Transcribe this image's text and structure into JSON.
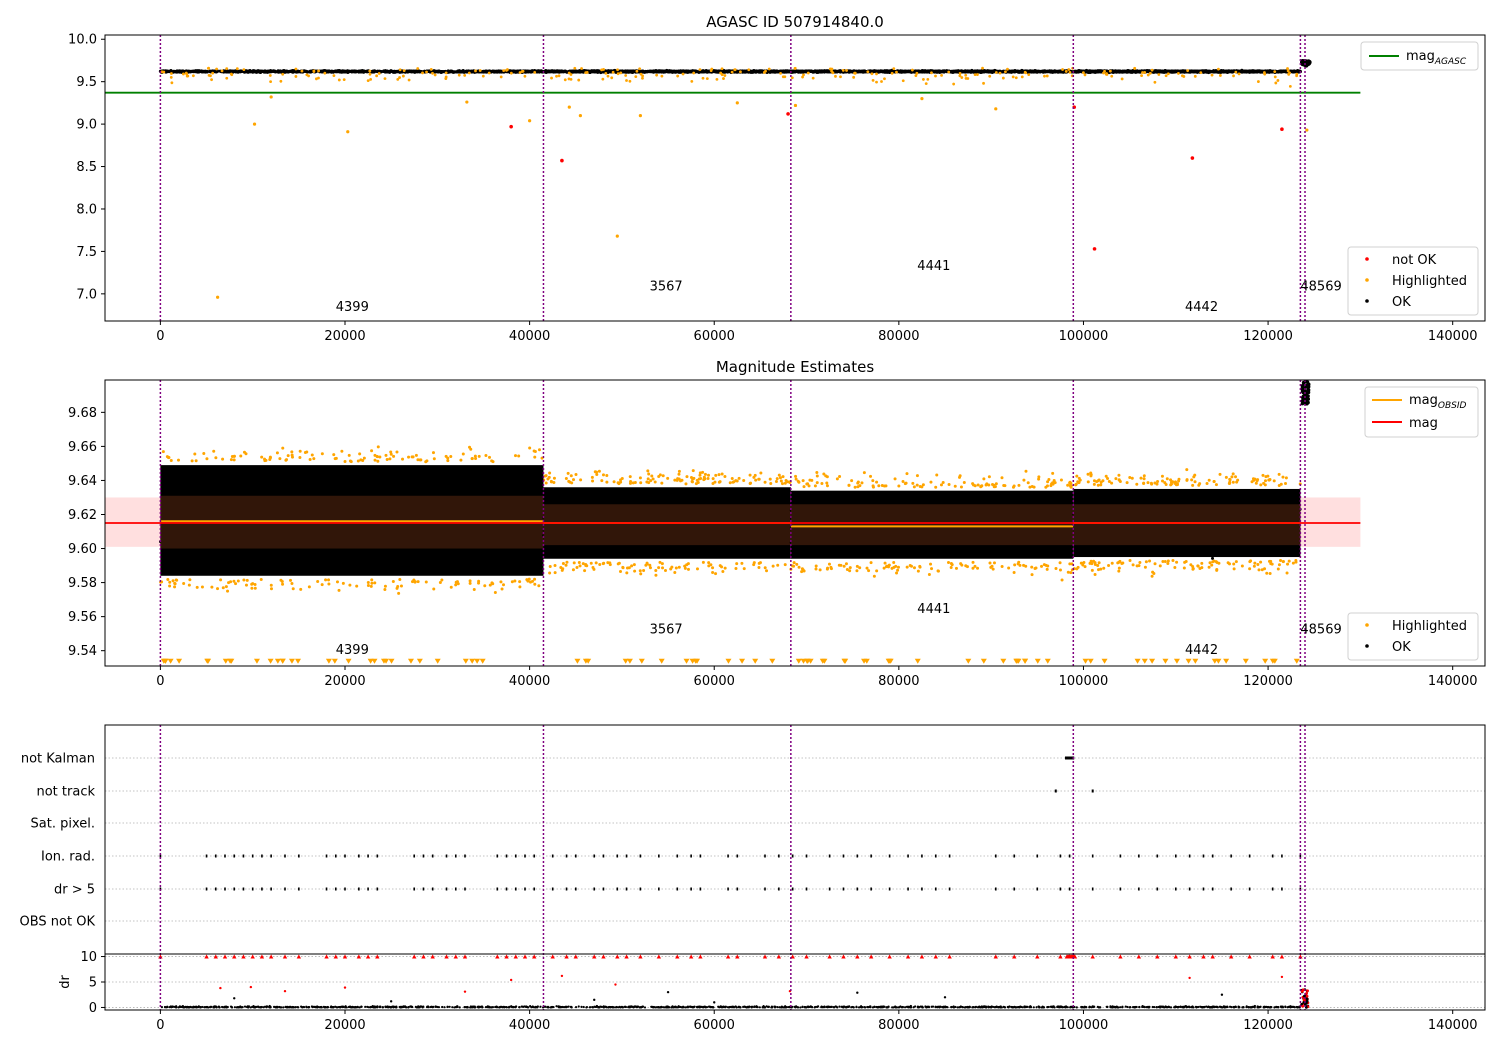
{
  "chart_data": [
    {
      "type": "scatter",
      "title": "AGASC ID 507914840.0",
      "xlim": [
        -6000,
        143500
      ],
      "ylim": [
        6.68,
        10.05
      ],
      "xticks": [
        0,
        20000,
        40000,
        60000,
        80000,
        100000,
        120000,
        140000
      ],
      "yticks": [
        7.0,
        7.5,
        8.0,
        8.5,
        9.0,
        9.5,
        10.0
      ],
      "ytick_labels": [
        "7.0",
        "7.5",
        "8.0",
        "8.5",
        "9.0",
        "9.5",
        "10.0"
      ],
      "mag_agasc": 9.37,
      "mag_agasc_x_range": [
        -6000,
        130000
      ],
      "baseline_mag": 9.62,
      "obsid_boundaries": [
        0,
        41500,
        68300,
        98900,
        123500,
        124000
      ],
      "obsid_labels": [
        {
          "text": "4399",
          "x": 19000,
          "y": 6.8
        },
        {
          "text": "3567",
          "x": 53000,
          "y": 7.04
        },
        {
          "text": "4441",
          "x": 82000,
          "y": 7.28
        },
        {
          "text": "4442",
          "x": 111000,
          "y": 6.8
        },
        {
          "text": "48569",
          "x": 123500,
          "y": 7.04
        }
      ],
      "not_ok_points": [
        [
          38000,
          8.97
        ],
        [
          43500,
          8.57
        ],
        [
          68000,
          9.12
        ],
        [
          99000,
          9.2
        ],
        [
          101200,
          7.53
        ],
        [
          111800,
          8.6
        ],
        [
          121500,
          8.94
        ]
      ],
      "highlighted_outliers": [
        [
          6200,
          6.96
        ],
        [
          10200,
          9.0
        ],
        [
          20300,
          8.91
        ],
        [
          49500,
          7.68
        ],
        [
          45500,
          9.1
        ],
        [
          52000,
          9.1
        ],
        [
          68800,
          9.22
        ],
        [
          90500,
          9.18
        ],
        [
          40000,
          9.04
        ],
        [
          44300,
          9.2
        ],
        [
          12000,
          9.32
        ],
        [
          82500,
          9.3
        ],
        [
          33200,
          9.26
        ],
        [
          62500,
          9.25
        ],
        [
          124200,
          8.93
        ]
      ],
      "legend": {
        "location": "upper-right",
        "entries": [
          "mag_{AGASC}"
        ]
      },
      "legend2": {
        "location": "lower-right",
        "entries": [
          "not OK",
          "Highlighted",
          "OK"
        ]
      },
      "colors": {
        "ok": "#000000",
        "highlighted": "#ffa500",
        "not_ok": "#ff0000",
        "mag_agasc": "#008000",
        "boundary": "#800080"
      }
    },
    {
      "type": "scatter",
      "title": "Magnitude Estimates",
      "xlim": [
        -6000,
        143500
      ],
      "ylim": [
        9.531,
        9.699
      ],
      "xticks": [
        0,
        20000,
        40000,
        60000,
        80000,
        100000,
        120000,
        140000
      ],
      "yticks": [
        9.54,
        9.56,
        9.58,
        9.6,
        9.62,
        9.64,
        9.66,
        9.68
      ],
      "ytick_labels": [
        "9.54",
        "9.56",
        "9.58",
        "9.60",
        "9.62",
        "9.64",
        "9.66",
        "9.68"
      ],
      "mag_mean": 9.615,
      "mag_band": [
        9.601,
        9.63
      ],
      "mag_x_range": [
        -6000,
        130000
      ],
      "segments": [
        {
          "x0": 0,
          "x1": 41500,
          "mag_obsid": 9.616,
          "band": [
            9.6,
            9.631
          ],
          "ok_range": [
            9.578,
            9.655
          ]
        },
        {
          "x0": 41500,
          "x1": 68300,
          "mag_obsid": 9.615,
          "band": [
            9.602,
            9.626
          ],
          "ok_range": [
            9.588,
            9.642
          ]
        },
        {
          "x0": 68300,
          "x1": 98900,
          "mag_obsid": 9.613,
          "band": [
            9.602,
            9.626
          ],
          "ok_range": [
            9.588,
            9.64
          ]
        },
        {
          "x0": 98900,
          "x1": 123500,
          "mag_obsid": 9.615,
          "band": [
            9.602,
            9.626
          ],
          "ok_range": [
            9.589,
            9.641
          ]
        }
      ],
      "obsid_labels": [
        {
          "text": "4399",
          "x": 19000,
          "y": 9.538
        },
        {
          "text": "3567",
          "x": 53000,
          "y": 9.55
        },
        {
          "text": "4441",
          "x": 82000,
          "y": 9.562
        },
        {
          "text": "4442",
          "x": 111000,
          "y": 9.538
        },
        {
          "text": "48569",
          "x": 123500,
          "y": 9.55
        }
      ],
      "lower_clipped_y": 9.5335,
      "legend": {
        "location": "upper-right",
        "entries": [
          "mag_{OBSID}",
          "mag"
        ]
      },
      "legend2": {
        "location": "lower-right",
        "entries": [
          "Highlighted",
          "OK"
        ]
      },
      "colors": {
        "ok": "#000000",
        "highlighted": "#ffa500",
        "mag": "#ff0000",
        "mag_obsid": "#ffa500",
        "band": "#ffc0c0"
      }
    },
    {
      "type": "scatter",
      "xlim": [
        -6000,
        143500
      ],
      "category_labels": [
        "not Kalman",
        "not track",
        "Sat. pixel.",
        "Ion. rad.",
        "dr > 5",
        "OBS not OK"
      ],
      "ion_rad_x": [
        0,
        5000,
        6000,
        7000,
        8000,
        9000,
        10000,
        11000,
        12000,
        13500,
        15000,
        18000,
        19000,
        20000,
        21500,
        22500,
        23500,
        27500,
        28500,
        29500,
        31000,
        32000,
        33000,
        36500,
        37500,
        38500,
        39500,
        40500,
        42500,
        44000,
        45000,
        47000,
        48000,
        49500,
        50500,
        52000,
        54000,
        56000,
        57500,
        58500,
        61500,
        62500,
        65500,
        67000,
        68500,
        70000,
        72500,
        74000,
        75500,
        77000,
        79000,
        81000,
        82500,
        84000,
        85500,
        90500,
        92500,
        95000,
        97500,
        98500,
        101000,
        104000,
        106000,
        108000,
        110000,
        111500,
        113000,
        114000,
        116000,
        118000,
        120500,
        121500,
        123500
      ],
      "not_kalman_x_range": [
        98000,
        99000
      ],
      "not_track_x": [
        97000,
        101000
      ],
      "dr_ylim": [
        -0.5,
        10.5
      ],
      "dr_yticks": [
        0,
        5,
        10
      ],
      "dr_ylabel": "dr",
      "dr_clipped_x": [
        0,
        5000,
        6000,
        7000,
        8000,
        9000,
        10000,
        11000,
        12000,
        13500,
        15000,
        18000,
        19000,
        20000,
        21500,
        22500,
        23500,
        27500,
        28500,
        29500,
        31000,
        32000,
        33000,
        36500,
        37500,
        38500,
        39500,
        40500,
        42500,
        44000,
        45000,
        47000,
        48000,
        49500,
        50500,
        52000,
        54000,
        56000,
        57500,
        58500,
        61500,
        62500,
        65500,
        67000,
        68500,
        70000,
        72500,
        74000,
        75500,
        77000,
        79000,
        81000,
        82500,
        84000,
        85500,
        90500,
        92500,
        95000,
        97500,
        98500,
        101000,
        104000,
        106000,
        108000,
        110000,
        111500,
        113000,
        114000,
        116000,
        118000,
        120500,
        121500,
        123500
      ],
      "dr_scattered": [
        [
          6500,
          3.8
        ],
        [
          9800,
          4.0
        ],
        [
          13500,
          3.2
        ],
        [
          20000,
          3.9
        ],
        [
          33000,
          3.1
        ],
        [
          38000,
          5.4
        ],
        [
          43500,
          6.2
        ],
        [
          49300,
          4.5
        ],
        [
          55000,
          3.0
        ],
        [
          68200,
          3.2
        ],
        [
          75500,
          2.9
        ],
        [
          111500,
          5.8
        ],
        [
          121500,
          6.0
        ],
        [
          8000,
          1.8
        ],
        [
          25000,
          1.2
        ],
        [
          47000,
          1.5
        ],
        [
          60000,
          1.0
        ],
        [
          85000,
          2.0
        ],
        [
          115000,
          2.5
        ]
      ],
      "colors": {
        "ok": "#000000",
        "flagged": "#ff0000",
        "grid": "#b0b0b0"
      }
    }
  ]
}
